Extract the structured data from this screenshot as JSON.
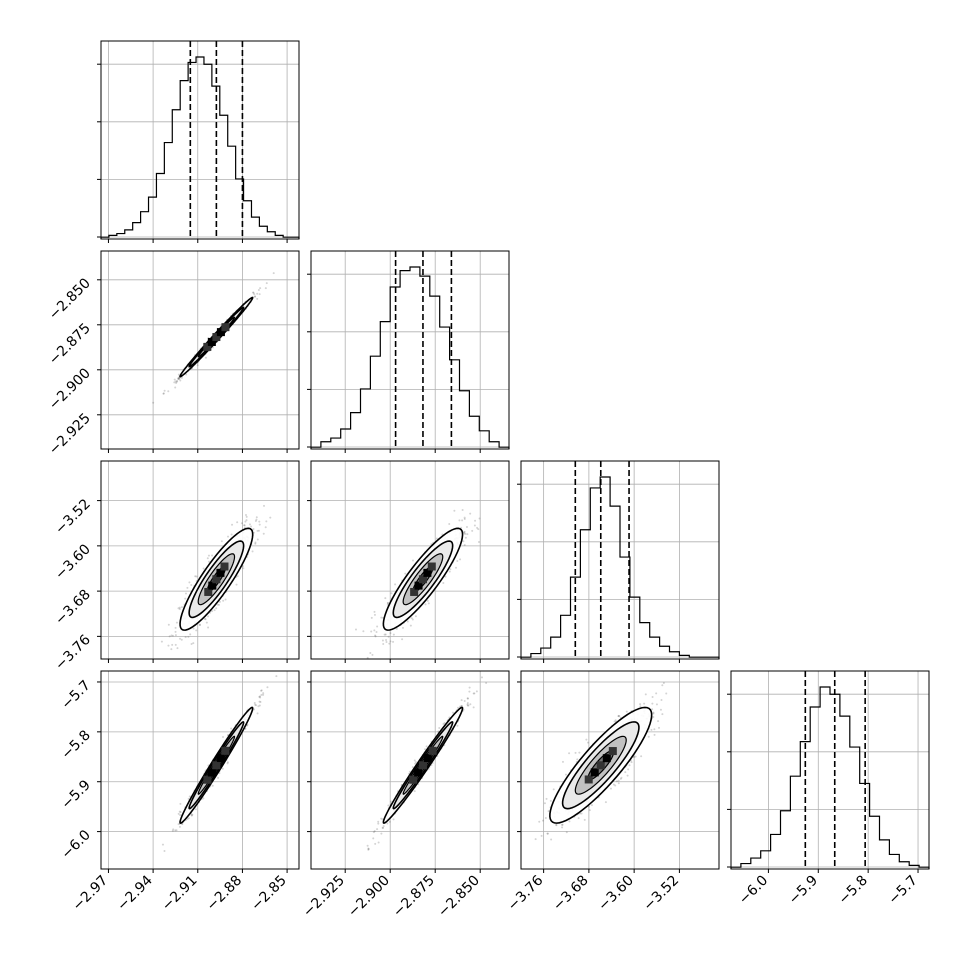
{
  "chart_data": {
    "type": "corner",
    "params": [
      {
        "range": [
          -2.975,
          -2.842
        ],
        "ticks": [
          "-2.97",
          "-2.94",
          "-2.91",
          "-2.88",
          "-2.85"
        ],
        "tick_values": [
          -2.97,
          -2.94,
          -2.91,
          -2.88,
          -2.85
        ],
        "quantiles": [
          -2.915,
          -2.8975,
          -2.88
        ],
        "hist": [
          1,
          2,
          3,
          5,
          9,
          15,
          23,
          36,
          53,
          71,
          87,
          97,
          100,
          96,
          84,
          68,
          51,
          33,
          21,
          12,
          7,
          4,
          2,
          1,
          1
        ]
      },
      {
        "range": [
          -2.944,
          -2.834
        ],
        "ticks": [
          "-2.925",
          "-2.900",
          "-2.875",
          "-2.850"
        ],
        "tick_values": [
          -2.925,
          -2.9,
          -2.875,
          -2.85
        ],
        "quantiles": [
          -2.897,
          -2.8818,
          -2.866
        ],
        "hist": [
          1,
          4,
          6,
          11,
          20,
          33,
          51,
          70,
          89,
          98,
          100,
          95,
          84,
          67,
          49,
          32,
          18,
          10,
          4,
          1
        ]
      },
      {
        "range": [
          -3.8,
          -3.45
        ],
        "ticks": [
          "-3.76",
          "-3.68",
          "-3.60",
          "-3.52"
        ],
        "tick_values": [
          -3.76,
          -3.68,
          -3.6,
          -3.52
        ],
        "quantiles": [
          -3.704,
          -3.659,
          -3.609
        ],
        "hist": [
          1,
          3,
          6,
          12,
          24,
          45,
          71,
          94,
          100,
          84,
          56,
          34,
          20,
          12,
          7,
          4,
          2,
          1,
          1,
          1
        ]
      },
      {
        "range": [
          -6.075,
          -5.678
        ],
        "ticks": [
          "-6.0",
          "-5.9",
          "-5.8",
          "-5.7"
        ],
        "tick_values": [
          -6.0,
          -5.9,
          -5.8,
          -5.7
        ],
        "quantiles": [
          -5.926,
          -5.867,
          -5.806
        ],
        "hist": [
          1,
          3,
          6,
          10,
          19,
          32,
          51,
          70,
          89,
          100,
          96,
          84,
          67,
          47,
          29,
          16,
          8,
          4,
          2,
          1
        ]
      }
    ],
    "pairs": [
      {
        "row": 1,
        "col": 0,
        "mean": [
          -2.8975,
          -2.8818
        ],
        "sd": [
          0.0122,
          0.011
        ],
        "corr": 0.993
      },
      {
        "row": 2,
        "col": 0,
        "mean": [
          -2.8975,
          -3.659
        ],
        "sd": [
          0.0122,
          0.045
        ],
        "corr": 0.88
      },
      {
        "row": 2,
        "col": 1,
        "mean": [
          -2.8818,
          -3.659
        ],
        "sd": [
          0.011,
          0.045
        ],
        "corr": 0.88
      },
      {
        "row": 3,
        "col": 0,
        "mean": [
          -2.8975,
          -5.867
        ],
        "sd": [
          0.0122,
          0.058
        ],
        "corr": 0.985
      },
      {
        "row": 3,
        "col": 1,
        "mean": [
          -2.8818,
          -5.867
        ],
        "sd": [
          0.011,
          0.058
        ],
        "corr": 0.985
      },
      {
        "row": 3,
        "col": 2,
        "mean": [
          -3.659,
          -5.867
        ],
        "sd": [
          0.045,
          0.058
        ],
        "corr": 0.87
      }
    ],
    "contour_levels": [
      0.5,
      1.0,
      1.5,
      2.0
    ],
    "grid": true,
    "colors": {
      "hist_line": "#000000",
      "grid": "#b0b0b0",
      "points": "#555555",
      "contour": "#000000"
    }
  }
}
